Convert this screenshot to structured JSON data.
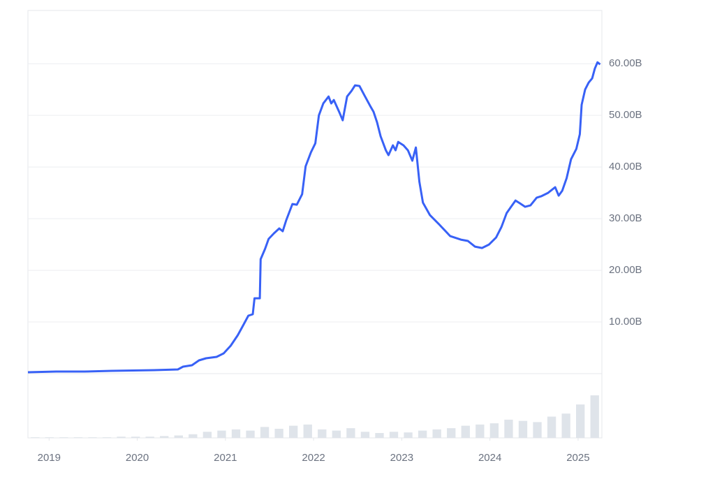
{
  "chart_data": {
    "type": "line",
    "color": "#3861f6",
    "x": [
      2018.76,
      2019.08,
      2019.4,
      2019.71,
      2020.19,
      2020.46,
      2020.52,
      2020.62,
      2020.7,
      2020.78,
      2020.9,
      2020.98,
      2021.06,
      2021.14,
      2021.2,
      2021.26,
      2021.31,
      2021.33,
      2021.39,
      2021.4,
      2021.45,
      2021.49,
      2021.55,
      2021.61,
      2021.65,
      2021.69,
      2021.76,
      2021.81,
      2021.87,
      2021.91,
      2021.97,
      2022.02,
      2022.06,
      2022.11,
      2022.17,
      2022.2,
      2022.23,
      2022.29,
      2022.33,
      2022.38,
      2022.43,
      2022.47,
      2022.52,
      2022.58,
      2022.64,
      2022.68,
      2022.72,
      2022.76,
      2022.82,
      2022.85,
      2022.9,
      2022.93,
      2022.96,
      2023.02,
      2023.07,
      2023.12,
      2023.16,
      2023.2,
      2023.24,
      2023.32,
      2023.43,
      2023.55,
      2023.67,
      2023.75,
      2023.83,
      2023.91,
      2023.99,
      2024.07,
      2024.13,
      2024.19,
      2024.24,
      2024.29,
      2024.34,
      2024.4,
      2024.46,
      2024.53,
      2024.58,
      2024.66,
      2024.74,
      2024.78,
      2024.82,
      2024.87,
      2024.92,
      2024.98,
      2025.02,
      2025.04,
      2025.08,
      2025.12,
      2025.16,
      2025.19,
      2025.22,
      2025.25
    ],
    "values": [
      0.27,
      0.41,
      0.41,
      0.54,
      0.68,
      0.81,
      1.35,
      1.62,
      2.57,
      2.97,
      3.24,
      3.92,
      5.41,
      7.43,
      9.32,
      11.22,
      11.49,
      14.59,
      14.59,
      22.16,
      24.19,
      26.08,
      27.16,
      28.11,
      27.57,
      29.73,
      32.84,
      32.7,
      34.73,
      40.14,
      42.84,
      44.59,
      50.0,
      52.3,
      53.65,
      52.3,
      52.97,
      50.68,
      49.05,
      53.65,
      54.73,
      55.81,
      55.68,
      53.78,
      51.89,
      50.68,
      48.65,
      45.95,
      43.24,
      42.3,
      44.19,
      43.24,
      44.86,
      44.19,
      43.24,
      41.22,
      43.78,
      37.16,
      33.11,
      30.68,
      28.78,
      26.62,
      25.95,
      25.68,
      24.59,
      24.32,
      25.0,
      26.35,
      28.38,
      31.08,
      32.3,
      33.51,
      32.97,
      32.3,
      32.57,
      34.05,
      34.32,
      35.0,
      36.08,
      34.46,
      35.41,
      37.84,
      41.49,
      43.51,
      46.35,
      52.03,
      55.0,
      56.35,
      57.16,
      59.05,
      60.27,
      59.86
    ],
    "xlim": [
      2018.76,
      2025.27
    ],
    "xticks": [
      2019,
      2020,
      2021,
      2022,
      2023,
      2024,
      2025
    ],
    "ylim": [
      0,
      70.3
    ],
    "yticks": [
      {
        "value": 10,
        "label": "10.00B"
      },
      {
        "value": 20,
        "label": "20.00B"
      },
      {
        "value": 30,
        "label": "30.00B"
      },
      {
        "value": 40,
        "label": "40.00B"
      },
      {
        "value": 50,
        "label": "50.00B"
      },
      {
        "value": 60,
        "label": "60.00B"
      }
    ],
    "grid": true,
    "volume": {
      "color": "#dfe4ea",
      "ylim": [
        0,
        100
      ],
      "values": [
        1,
        1,
        1,
        1,
        1,
        1,
        2,
        2,
        2,
        3,
        4,
        6,
        10,
        12,
        14,
        12,
        18,
        15,
        20,
        22,
        14,
        12,
        16,
        10,
        8,
        10,
        9,
        12,
        14,
        16,
        20,
        22,
        24,
        30,
        28,
        26,
        35,
        40,
        55,
        70
      ]
    }
  }
}
